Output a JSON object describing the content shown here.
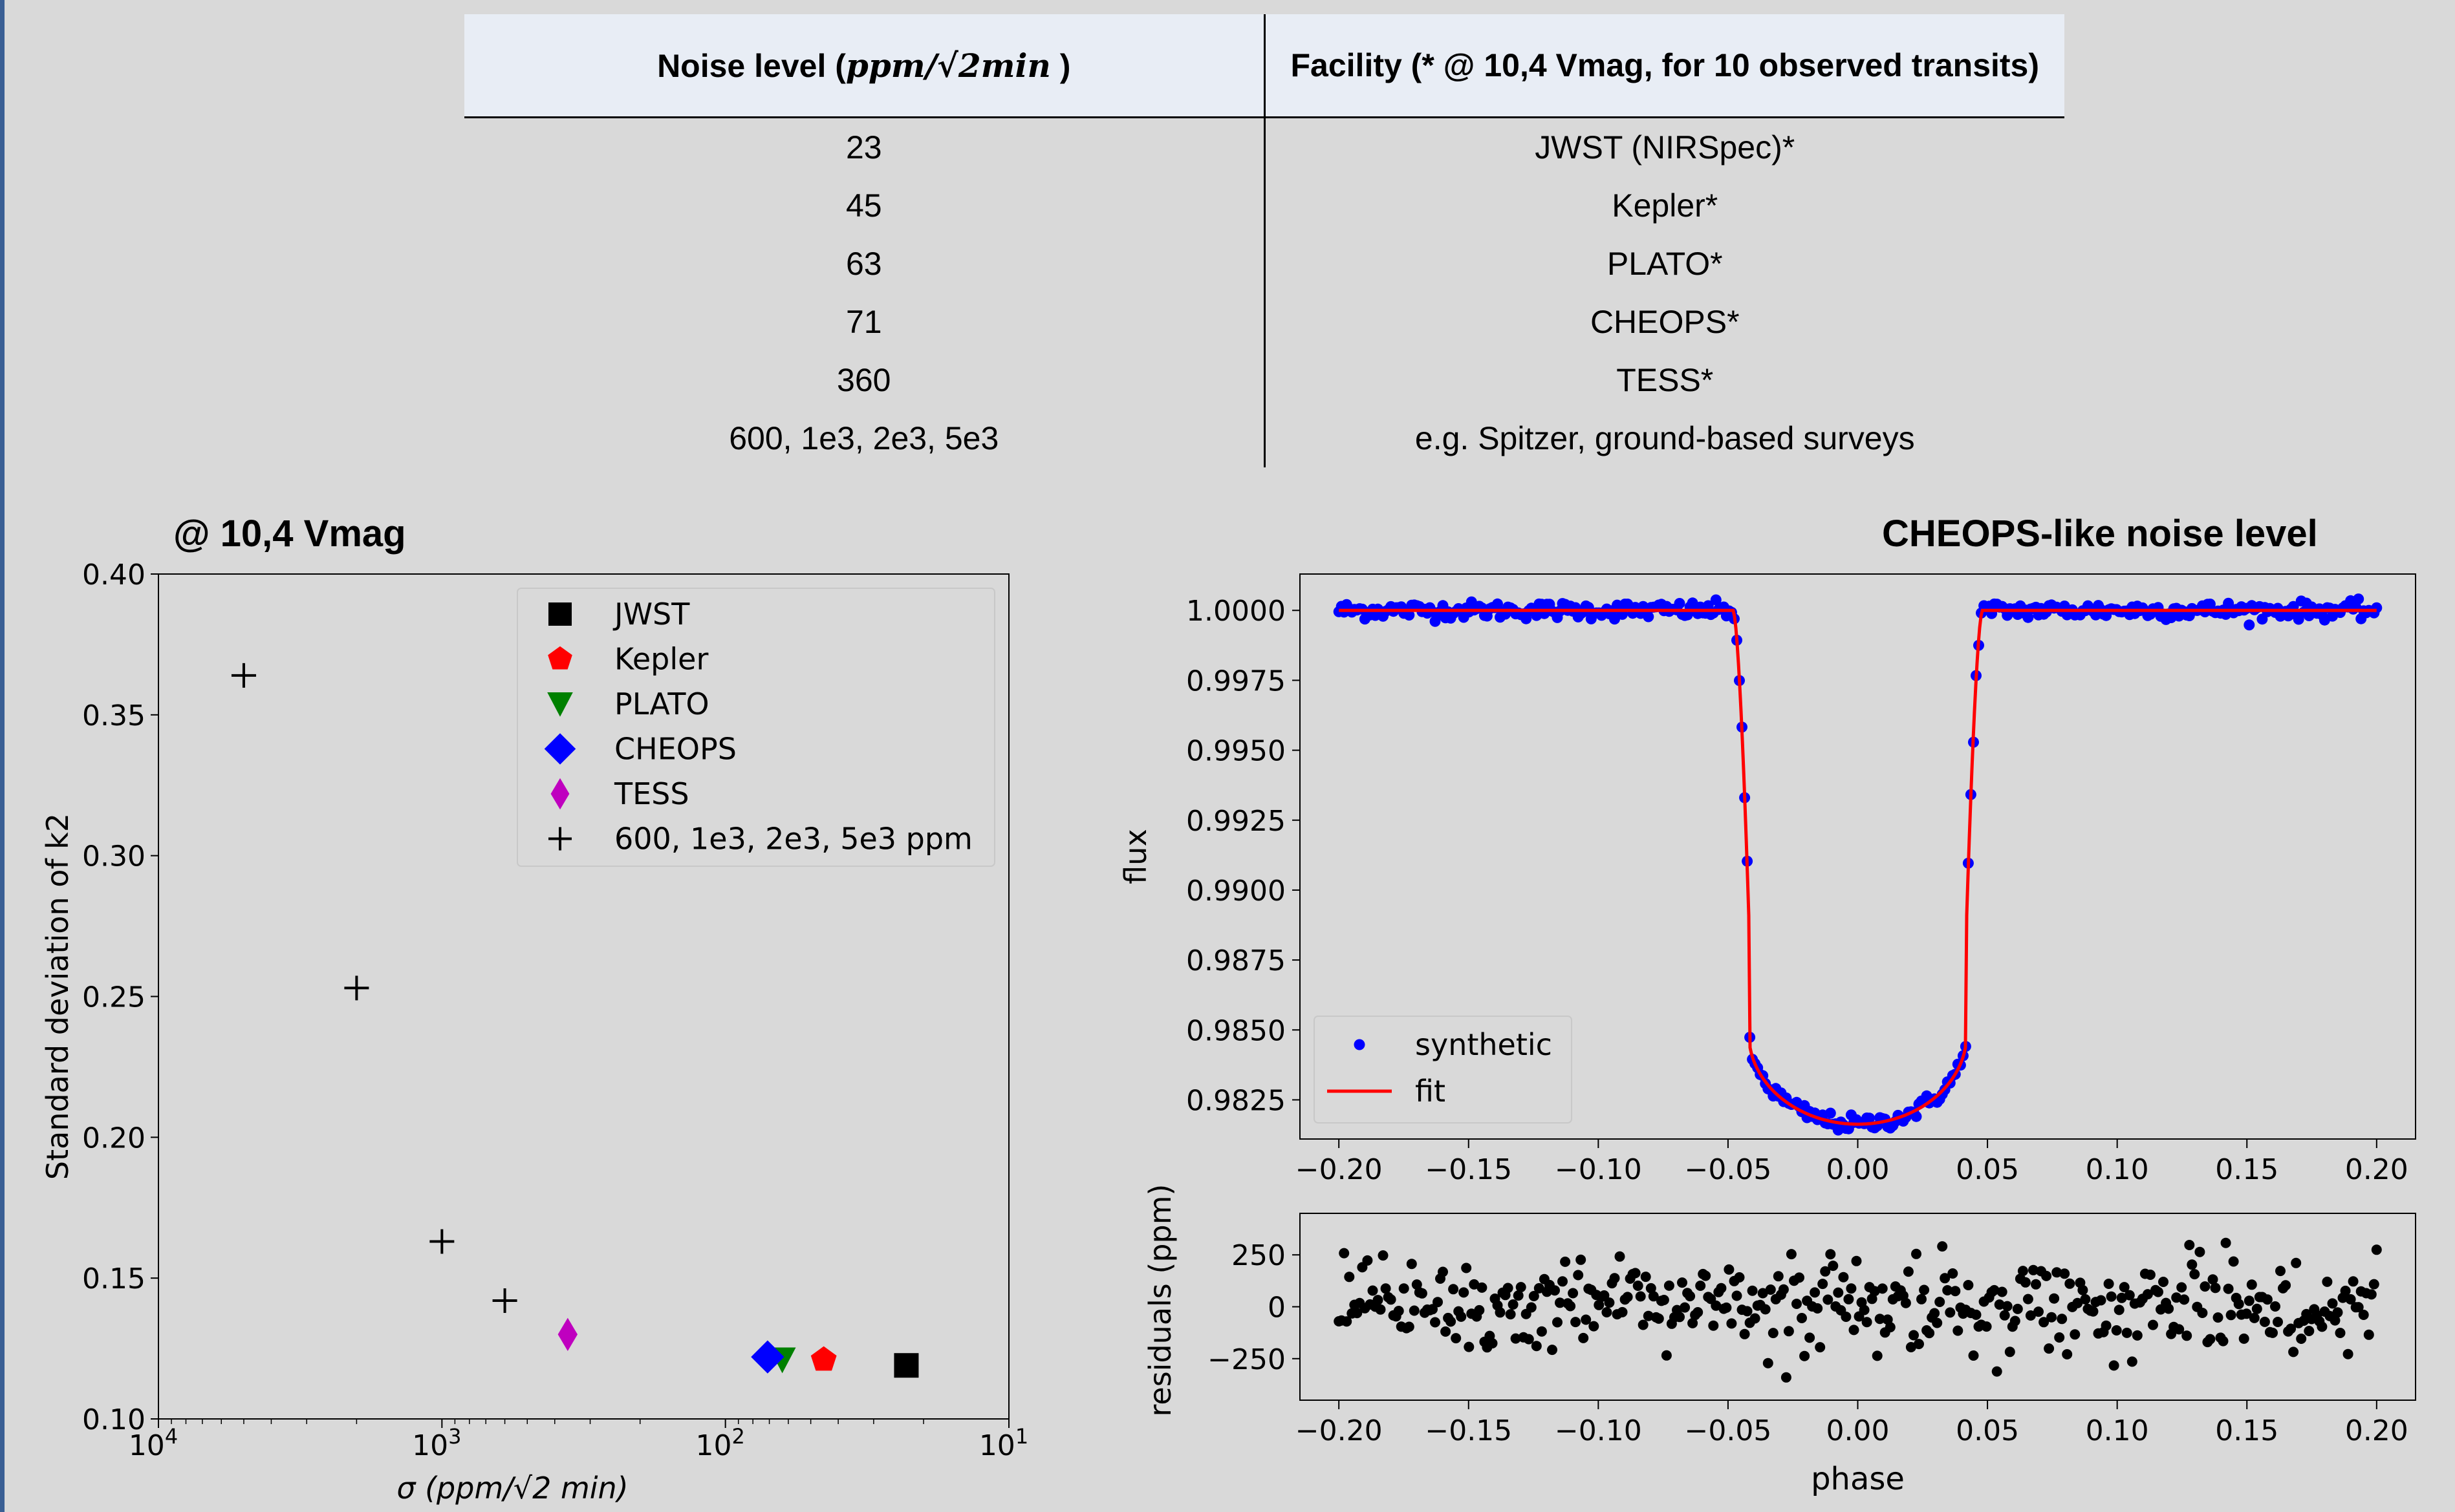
{
  "table": {
    "headers": {
      "noise_prefix": "Noise level (",
      "noise_unit": "ppm/√2min",
      "noise_suffix": " )",
      "facility": "Facility (* @ 10,4 Vmag, for 10 observed transits)"
    },
    "rows": [
      {
        "noise": "23",
        "facility": "JWST (NIRSpec)*"
      },
      {
        "noise": "45",
        "facility": "Kepler*"
      },
      {
        "noise": "63",
        "facility": "PLATO*"
      },
      {
        "noise": "71",
        "facility": "CHEOPS*"
      },
      {
        "noise": "360",
        "facility": "TESS*"
      },
      {
        "noise": "600, 1e3, 2e3, 5e3",
        "facility": "e.g. Spitzer, ground-based surveys"
      }
    ]
  },
  "chart_data": [
    {
      "type": "scatter",
      "title": "@ 10,4 Vmag",
      "xlabel": "σ (ppm/√2 min)",
      "ylabel": "Standard deviation of k2",
      "xscale": "log",
      "x_inverted": true,
      "xlim": [
        10000,
        10
      ],
      "ylim": [
        0.1,
        0.4
      ],
      "xticks": [
        {
          "value": 10000,
          "base": "10",
          "exp": "4"
        },
        {
          "value": 1000,
          "base": "10",
          "exp": "3"
        },
        {
          "value": 100,
          "base": "10",
          "exp": "2"
        },
        {
          "value": 10,
          "base": "10",
          "exp": "1"
        }
      ],
      "yticks": [
        "0.10",
        "0.15",
        "0.20",
        "0.25",
        "0.30",
        "0.35",
        "0.40"
      ],
      "legend_position": "top-right",
      "series": [
        {
          "name": "JWST",
          "marker": "square",
          "color": "#000000",
          "points": [
            {
              "x": 23,
              "y": 0.119
            }
          ]
        },
        {
          "name": "Kepler",
          "marker": "pentagon",
          "color": "#ff0000",
          "points": [
            {
              "x": 45,
              "y": 0.121
            }
          ]
        },
        {
          "name": "PLATO",
          "marker": "triangle-down",
          "color": "#008000",
          "points": [
            {
              "x": 63,
              "y": 0.121
            }
          ]
        },
        {
          "name": "CHEOPS",
          "marker": "diamond",
          "color": "#0000ff",
          "points": [
            {
              "x": 71,
              "y": 0.122
            }
          ]
        },
        {
          "name": "TESS",
          "marker": "thin-diamond",
          "color": "#bf00bf",
          "points": [
            {
              "x": 360,
              "y": 0.13
            }
          ]
        },
        {
          "name": "600, 1e3, 2e3, 5e3 ppm",
          "marker": "plus",
          "color": "#000000",
          "points": [
            {
              "x": 600,
              "y": 0.142
            },
            {
              "x": 1000,
              "y": 0.163
            },
            {
              "x": 2000,
              "y": 0.253
            },
            {
              "x": 5000,
              "y": 0.364
            }
          ]
        }
      ]
    },
    {
      "type": "line",
      "title": "CHEOPS-like noise level",
      "xlabel": "",
      "ylabel": "flux",
      "xlim": [
        -0.215,
        0.215
      ],
      "ylim": [
        0.9811,
        1.0013
      ],
      "xticks": [
        "−0.20",
        "−0.15",
        "−0.10",
        "−0.05",
        "0.00",
        "0.05",
        "0.10",
        "0.15",
        "0.20"
      ],
      "xtick_values": [
        -0.2,
        -0.15,
        -0.1,
        -0.05,
        0.0,
        0.05,
        0.1,
        0.15,
        0.2
      ],
      "yticks": [
        "0.9825",
        "0.9850",
        "0.9875",
        "0.9900",
        "0.9925",
        "0.9950",
        "0.9975",
        "1.0000"
      ],
      "ytick_values": [
        0.9825,
        0.985,
        0.9875,
        0.99,
        0.9925,
        0.995,
        0.9975,
        1.0
      ],
      "legend_position": "lower-left",
      "transit_model": {
        "t0": 0.0,
        "t1": 0.042,
        "t4": 0.048,
        "depth": 0.01837,
        "limb_u": 0.55
      },
      "series": [
        {
          "name": "synthetic",
          "kind": "points",
          "color": "#0000ff",
          "x_range": [
            -0.2,
            0.2
          ],
          "n_points": 400,
          "noise_ppm": 150
        },
        {
          "name": "fit",
          "kind": "line",
          "color": "#ff0000"
        }
      ]
    },
    {
      "type": "scatter",
      "title": "",
      "xlabel": "phase",
      "ylabel": "residuals (ppm)",
      "xlim": [
        -0.215,
        0.215
      ],
      "ylim": [
        -450,
        450
      ],
      "xticks": [
        "−0.20",
        "−0.15",
        "−0.10",
        "−0.05",
        "0.00",
        "0.05",
        "0.10",
        "0.15",
        "0.20"
      ],
      "xtick_values": [
        -0.2,
        -0.15,
        -0.1,
        -0.05,
        0.0,
        0.05,
        0.1,
        0.15,
        0.2
      ],
      "yticks": [
        "−250",
        "0",
        "250"
      ],
      "ytick_values": [
        -250,
        0,
        250
      ],
      "series": [
        {
          "name": "residuals",
          "kind": "points",
          "color": "#000000",
          "x_range": [
            -0.2,
            0.2
          ],
          "n_points": 400,
          "std_ppm": 150,
          "range_ppm": [
            -420,
            390
          ]
        }
      ]
    }
  ]
}
